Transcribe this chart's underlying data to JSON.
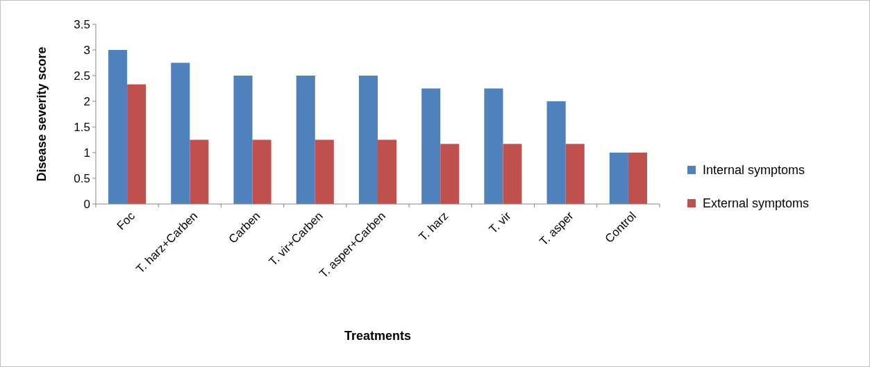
{
  "chart_data": {
    "type": "bar",
    "xlabel": "Treatments",
    "ylabel": "Disease severity score",
    "categories": [
      "Foc",
      "T. harz+Carben",
      "Carben",
      "T. vir+Carben",
      "T. asper+Carben",
      "T. harz",
      "T. vir",
      "T. asper",
      "Control"
    ],
    "series": [
      {
        "name": "Internal symptoms",
        "color": "#4f81bd",
        "values": [
          3,
          2.75,
          2.5,
          2.5,
          2.5,
          2.25,
          2.25,
          2,
          1
        ]
      },
      {
        "name": "External symptoms",
        "color": "#c0504d",
        "values": [
          2.33,
          1.25,
          1.25,
          1.25,
          1.25,
          1.17,
          1.17,
          1.17,
          1
        ]
      }
    ],
    "ylim": [
      0,
      3.5
    ],
    "yticks": [
      0,
      0.5,
      1,
      1.5,
      2,
      2.5,
      3,
      3.5
    ],
    "grid": false,
    "legend": "right"
  }
}
